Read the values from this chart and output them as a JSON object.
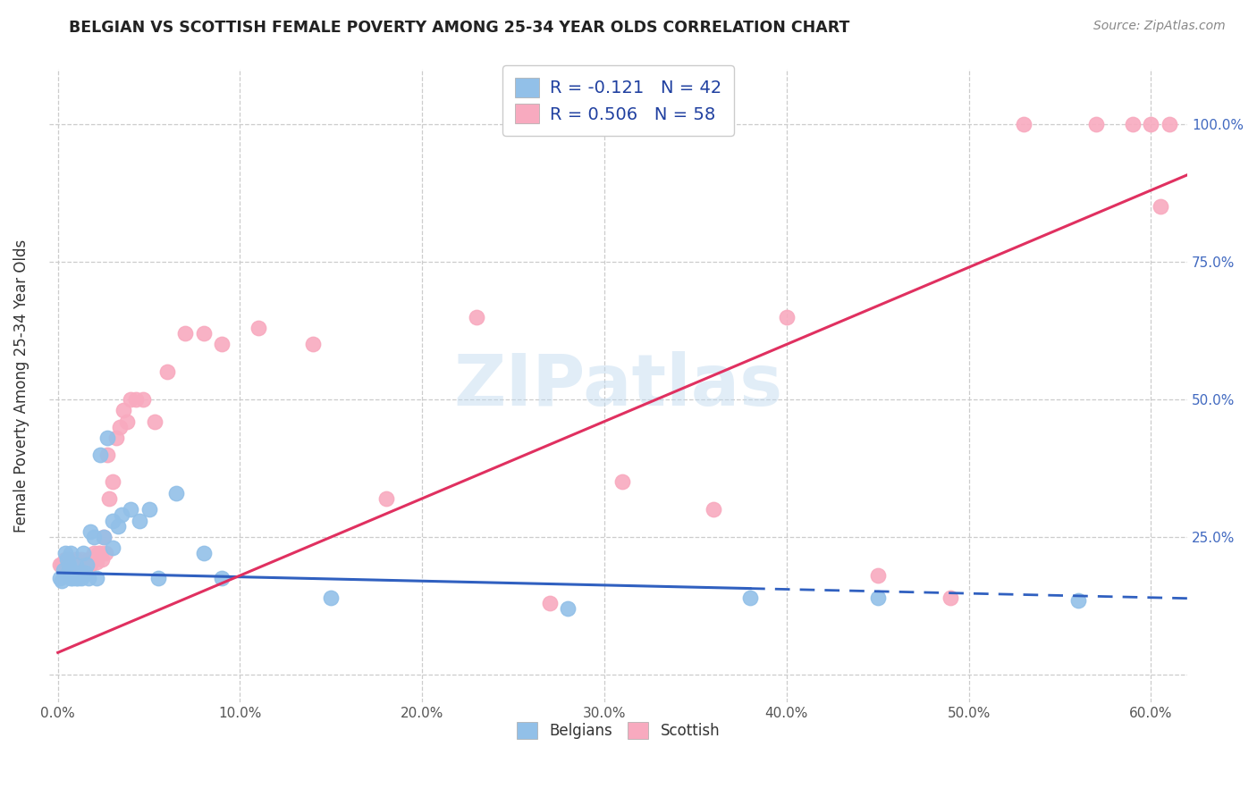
{
  "title": "BELGIAN VS SCOTTISH FEMALE POVERTY AMONG 25-34 YEAR OLDS CORRELATION CHART",
  "source": "Source: ZipAtlas.com",
  "ylabel": "Female Poverty Among 25-34 Year Olds",
  "xlim": [
    -0.005,
    0.62
  ],
  "ylim": [
    -0.05,
    1.1
  ],
  "x_ticks": [
    0.0,
    0.1,
    0.2,
    0.3,
    0.4,
    0.5,
    0.6
  ],
  "x_tick_labels": [
    "0.0%",
    "10.0%",
    "20.0%",
    "30.0%",
    "40.0%",
    "50.0%",
    "60.0%"
  ],
  "y_ticks": [
    0.0,
    0.25,
    0.5,
    0.75,
    1.0
  ],
  "y_tick_labels_right": [
    "",
    "25.0%",
    "50.0%",
    "75.0%",
    "100.0%"
  ],
  "belgian_color": "#92C0E8",
  "scottish_color": "#F8AABF",
  "belgian_line_color": "#3060C0",
  "scottish_line_color": "#E03060",
  "legend_text1": "R = -0.121   N = 42",
  "legend_text2": "R = 0.506   N = 58",
  "legend_color": "#2040A0",
  "background_color": "#FFFFFF",
  "grid_color": "#CCCCCC",
  "watermark_color": "#BDD8EF",
  "watermark_alpha": 0.45,
  "belgian_x": [
    0.001,
    0.002,
    0.003,
    0.004,
    0.005,
    0.006,
    0.006,
    0.007,
    0.007,
    0.008,
    0.009,
    0.01,
    0.01,
    0.011,
    0.012,
    0.013,
    0.014,
    0.015,
    0.016,
    0.017,
    0.018,
    0.02,
    0.021,
    0.023,
    0.025,
    0.027,
    0.03,
    0.03,
    0.033,
    0.035,
    0.04,
    0.045,
    0.05,
    0.055,
    0.065,
    0.08,
    0.09,
    0.15,
    0.28,
    0.38,
    0.45,
    0.56
  ],
  "belgian_y": [
    0.175,
    0.17,
    0.19,
    0.22,
    0.21,
    0.2,
    0.19,
    0.22,
    0.175,
    0.175,
    0.18,
    0.175,
    0.2,
    0.175,
    0.185,
    0.175,
    0.22,
    0.185,
    0.2,
    0.175,
    0.26,
    0.25,
    0.175,
    0.4,
    0.25,
    0.43,
    0.28,
    0.23,
    0.27,
    0.29,
    0.3,
    0.28,
    0.3,
    0.175,
    0.33,
    0.22,
    0.175,
    0.14,
    0.12,
    0.14,
    0.14,
    0.135
  ],
  "scottish_x": [
    0.001,
    0.002,
    0.003,
    0.004,
    0.005,
    0.006,
    0.007,
    0.008,
    0.009,
    0.01,
    0.011,
    0.012,
    0.012,
    0.013,
    0.014,
    0.015,
    0.016,
    0.017,
    0.018,
    0.019,
    0.02,
    0.021,
    0.022,
    0.023,
    0.024,
    0.025,
    0.026,
    0.027,
    0.028,
    0.03,
    0.032,
    0.034,
    0.036,
    0.038,
    0.04,
    0.043,
    0.047,
    0.053,
    0.06,
    0.07,
    0.08,
    0.09,
    0.11,
    0.14,
    0.18,
    0.23,
    0.27,
    0.31,
    0.36,
    0.4,
    0.45,
    0.49,
    0.53,
    0.57,
    0.59,
    0.6,
    0.605,
    0.61
  ],
  "scottish_y": [
    0.2,
    0.2,
    0.195,
    0.21,
    0.2,
    0.21,
    0.205,
    0.2,
    0.195,
    0.21,
    0.205,
    0.2,
    0.195,
    0.21,
    0.205,
    0.2,
    0.195,
    0.21,
    0.2,
    0.21,
    0.22,
    0.205,
    0.22,
    0.22,
    0.21,
    0.25,
    0.22,
    0.4,
    0.32,
    0.35,
    0.43,
    0.45,
    0.48,
    0.46,
    0.5,
    0.5,
    0.5,
    0.46,
    0.55,
    0.62,
    0.62,
    0.6,
    0.63,
    0.6,
    0.32,
    0.65,
    0.13,
    0.35,
    0.3,
    0.65,
    0.18,
    0.14,
    1.0,
    1.0,
    1.0,
    1.0,
    0.85,
    1.0
  ],
  "belgian_line_intercept": 0.185,
  "belgian_line_slope": -0.075,
  "scottish_line_intercept": 0.04,
  "scottish_line_slope": 1.4
}
